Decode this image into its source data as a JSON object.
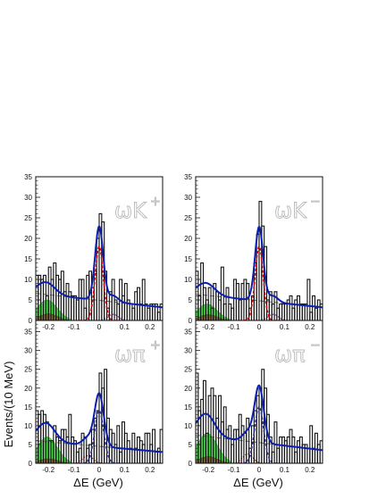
{
  "y_axis_label": "Events/(10 MeV)",
  "x_axis_label": "ΔE (GeV)",
  "chart_data": [
    {
      "type": "bar",
      "label": "ωK+",
      "panel_label_main": "ωK",
      "panel_label_sup": "+",
      "xlim": [
        -0.25,
        0.25
      ],
      "ylim": [
        0,
        35
      ],
      "xticks": [
        -0.2,
        -0.1,
        0,
        0.1,
        0.2
      ],
      "xtick_labels": [
        "-0.2",
        "-0.1",
        "0",
        "0.1",
        "0.2"
      ],
      "yticks": [
        0,
        5,
        10,
        15,
        20,
        25,
        30,
        35
      ],
      "ytick_labels": [
        "0",
        "5",
        "10",
        "15",
        "20",
        "25",
        "30",
        "35"
      ],
      "x_edges_start": -0.25,
      "bin_width": 0.01,
      "values": [
        11,
        11,
        10,
        11,
        6,
        13,
        10,
        14,
        11,
        10,
        12,
        7,
        9,
        7,
        6,
        6,
        5,
        10,
        10,
        3,
        11,
        12,
        8,
        12,
        20,
        26,
        24,
        12,
        3,
        7,
        10,
        5,
        4,
        10,
        6,
        9,
        5,
        4,
        3,
        7,
        8,
        4,
        10,
        4,
        3,
        4,
        4,
        4,
        2,
        4
      ],
      "signal_color": "#e00000",
      "curve_color": "#0a1fb0"
    },
    {
      "type": "bar",
      "label": "ωK-",
      "panel_label_main": "ωK",
      "panel_label_sup": "−",
      "xlim": [
        -0.25,
        0.25
      ],
      "ylim": [
        0,
        35
      ],
      "xticks": [
        -0.2,
        -0.1,
        0,
        0.1,
        0.2
      ],
      "xtick_labels": [
        "-0.2",
        "-0.1",
        "0",
        "0.1",
        "0.2"
      ],
      "yticks": [
        0,
        5,
        10,
        15,
        20,
        25,
        30,
        35
      ],
      "ytick_labels": [
        "0",
        "5",
        "10",
        "15",
        "20",
        "25",
        "30",
        "35"
      ],
      "x_edges_start": -0.25,
      "bin_width": 0.01,
      "values": [
        12,
        6,
        14,
        8,
        5,
        8,
        3,
        9,
        7,
        5,
        13,
        4,
        8,
        4,
        3,
        10,
        9,
        5,
        9,
        10,
        9,
        3,
        6,
        14,
        21,
        29,
        23,
        18,
        5,
        7,
        4,
        7,
        3,
        4,
        4,
        4,
        5,
        6,
        3,
        5,
        6,
        4,
        4,
        4,
        10,
        2,
        6,
        3,
        5,
        4
      ],
      "signal_color": "#e00000",
      "curve_color": "#0a1fb0"
    },
    {
      "type": "bar",
      "label": "ωπ+",
      "panel_label_main": "ωπ",
      "panel_label_sup": "+",
      "xlim": [
        -0.25,
        0.25
      ],
      "ylim": [
        0,
        38
      ],
      "xticks": [
        -0.2,
        -0.1,
        0,
        0.1,
        0.2
      ],
      "xtick_labels": [
        "-0.2",
        "-0.1",
        "0",
        "0.1",
        "0.2"
      ],
      "yticks": [
        0,
        5,
        10,
        15,
        20,
        25,
        30,
        35
      ],
      "ytick_labels": [
        "0",
        "5",
        "10",
        "15",
        "20",
        "25",
        "30",
        "35"
      ],
      "x_edges_start": -0.25,
      "bin_width": 0.01,
      "values": [
        14,
        13,
        14,
        13,
        11,
        6,
        6,
        10,
        7,
        6,
        9,
        9,
        7,
        13,
        7,
        6,
        3,
        4,
        8,
        7,
        4,
        5,
        9,
        12,
        14,
        24,
        20,
        25,
        12,
        9,
        8,
        5,
        10,
        3,
        11,
        8,
        6,
        4,
        8,
        4,
        7,
        6,
        5,
        8,
        8,
        5,
        9,
        3,
        4,
        9
      ],
      "signal_color": "#3030a0",
      "curve_color": "#0a1fb0"
    },
    {
      "type": "bar",
      "label": "ωπ-",
      "panel_label_main": "ωπ",
      "panel_label_sup": "−",
      "xlim": [
        -0.25,
        0.25
      ],
      "ylim": [
        0,
        38
      ],
      "xticks": [
        -0.2,
        -0.1,
        0,
        0.1,
        0.2
      ],
      "xtick_labels": [
        "-0.2",
        "-0.1",
        "0",
        "0.1",
        "0.2"
      ],
      "yticks": [
        0,
        5,
        10,
        15,
        20,
        25,
        30,
        35
      ],
      "ytick_labels": [
        "0",
        "5",
        "10",
        "15",
        "20",
        "25",
        "30",
        "35"
      ],
      "x_edges_start": -0.25,
      "bin_width": 0.01,
      "values": [
        24,
        14,
        17,
        22,
        8,
        18,
        20,
        18,
        12,
        18,
        11,
        15,
        9,
        10,
        5,
        9,
        9,
        13,
        10,
        8,
        12,
        4,
        10,
        14,
        18,
        20,
        25,
        20,
        13,
        7,
        3,
        11,
        4,
        7,
        7,
        6,
        7,
        9,
        7,
        3,
        6,
        7,
        5,
        5,
        4,
        10,
        4,
        8,
        5,
        6
      ],
      "signal_color": "#3030a0",
      "curve_color": "#0a1fb0"
    }
  ]
}
